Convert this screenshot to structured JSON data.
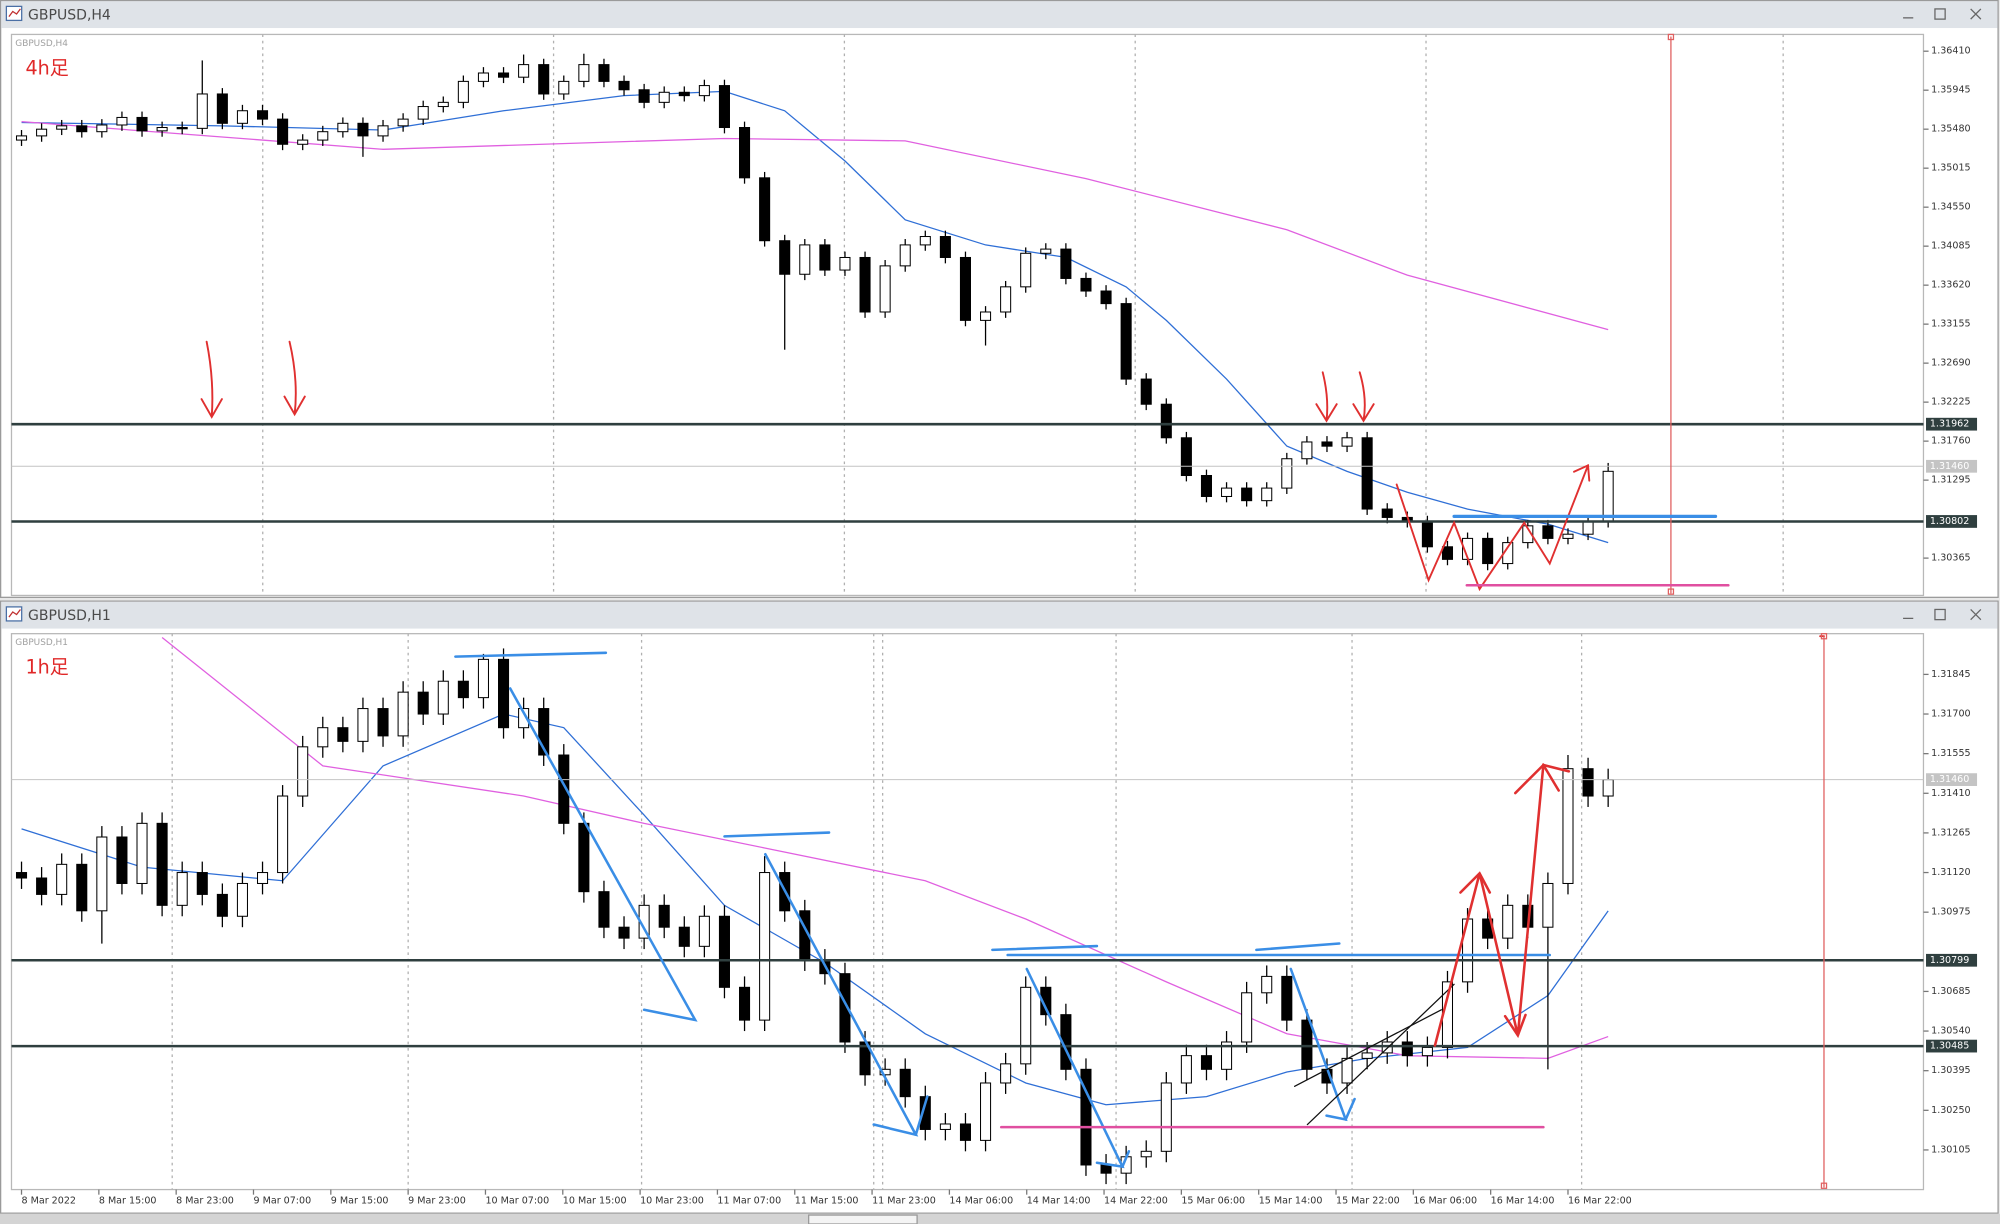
{
  "chart_data": [
    {
      "type": "candlestick",
      "window_title": "GBPUSD,H4",
      "symbol_label": "GBPUSD,H4",
      "annotation": "4h足",
      "xlim": [
        -0.5,
        94.7
      ],
      "ylim": [
        1.2992,
        1.3661
      ],
      "yticks": [
        {
          "value": 1.3641,
          "label": "1.36410"
        },
        1.35945,
        {
          "value": 1.3548,
          "label": "1.35480"
        },
        1.35015,
        {
          "value": 1.3455,
          "label": "1.34550"
        },
        1.34085,
        {
          "value": 1.3362,
          "label": "1.33620"
        },
        1.33155,
        {
          "value": 1.3269,
          "label": "1.32690"
        },
        1.32225,
        {
          "value": 1.3176,
          "label": "1.31760"
        },
        1.31295,
        1.30365
      ],
      "colors": {
        "up": "#ffffff",
        "down": "#000000",
        "wick": "#000000"
      },
      "open": [
        1.3535,
        1.354,
        1.3548,
        1.3552,
        1.3545,
        1.3553,
        1.3562,
        1.3546,
        1.355,
        1.3549,
        1.359,
        1.3555,
        1.357,
        1.356,
        1.353,
        1.3535,
        1.3545,
        1.3555,
        1.354,
        1.3552,
        1.356,
        1.3575,
        1.358,
        1.3605,
        1.3615,
        1.361,
        1.3625,
        1.359,
        1.3605,
        1.3625,
        1.3605,
        1.3595,
        1.358,
        1.3592,
        1.3588,
        1.36,
        1.355,
        1.349,
        1.3415,
        1.3375,
        1.341,
        1.338,
        1.3395,
        1.333,
        1.3385,
        1.341,
        1.342,
        1.3395,
        1.332,
        1.333,
        1.336,
        1.34,
        1.3405,
        1.337,
        1.3355,
        1.334,
        1.325,
        1.322,
        1.318,
        1.3135,
        1.311,
        1.312,
        1.3105,
        1.312,
        1.3155,
        1.3175,
        1.317,
        1.318,
        1.3095,
        1.3085,
        1.308,
        1.305,
        1.3035,
        1.306,
        1.303,
        1.3055,
        1.3075,
        1.306,
        1.3065,
        1.308
      ],
      "high": [
        1.3547,
        1.3555,
        1.3559,
        1.3559,
        1.356,
        1.3569,
        1.3569,
        1.3557,
        1.3557,
        1.363,
        1.3597,
        1.3577,
        1.3577,
        1.3567,
        1.3542,
        1.3552,
        1.3562,
        1.3562,
        1.3559,
        1.3567,
        1.3582,
        1.3587,
        1.3612,
        1.3622,
        1.3622,
        1.3637,
        1.3632,
        1.3612,
        1.3638,
        1.3632,
        1.3612,
        1.3602,
        1.3599,
        1.3599,
        1.3607,
        1.3607,
        1.3557,
        1.3497,
        1.3422,
        1.3417,
        1.3417,
        1.3402,
        1.3402,
        1.3392,
        1.3417,
        1.3427,
        1.3427,
        1.3402,
        1.3337,
        1.3367,
        1.3407,
        1.3412,
        1.3412,
        1.3377,
        1.3362,
        1.3347,
        1.3257,
        1.3227,
        1.3187,
        1.3142,
        1.3127,
        1.3127,
        1.3127,
        1.3162,
        1.3182,
        1.3182,
        1.3187,
        1.3187,
        1.3102,
        1.3092,
        1.3087,
        1.3057,
        1.3067,
        1.3067,
        1.3062,
        1.3082,
        1.3082,
        1.3072,
        1.3087,
        1.315
      ],
      "low": [
        1.3528,
        1.3533,
        1.3541,
        1.3538,
        1.3538,
        1.3546,
        1.3539,
        1.3539,
        1.3542,
        1.3542,
        1.3548,
        1.3548,
        1.3553,
        1.3523,
        1.3523,
        1.3528,
        1.3538,
        1.3515,
        1.3533,
        1.3545,
        1.3553,
        1.3568,
        1.3573,
        1.3598,
        1.3603,
        1.3603,
        1.3583,
        1.3583,
        1.3598,
        1.3598,
        1.3588,
        1.3573,
        1.3573,
        1.3581,
        1.3581,
        1.3543,
        1.3483,
        1.3408,
        1.3285,
        1.3368,
        1.3373,
        1.3373,
        1.3323,
        1.3323,
        1.3378,
        1.3403,
        1.3388,
        1.3313,
        1.329,
        1.3323,
        1.3353,
        1.3393,
        1.3363,
        1.3348,
        1.3333,
        1.3243,
        1.3213,
        1.3173,
        1.3128,
        1.3103,
        1.3103,
        1.3098,
        1.3098,
        1.3113,
        1.3148,
        1.3163,
        1.3163,
        1.3088,
        1.3078,
        1.3073,
        1.3043,
        1.3028,
        1.3028,
        1.3022,
        1.3023,
        1.3048,
        1.3053,
        1.3053,
        1.3058,
        1.3073
      ],
      "close": [
        1.354,
        1.3548,
        1.3552,
        1.3545,
        1.3553,
        1.3562,
        1.3546,
        1.355,
        1.3549,
        1.359,
        1.3555,
        1.357,
        1.356,
        1.353,
        1.3535,
        1.3545,
        1.3555,
        1.354,
        1.3552,
        1.356,
        1.3575,
        1.358,
        1.3605,
        1.3615,
        1.361,
        1.3625,
        1.359,
        1.3605,
        1.3625,
        1.3605,
        1.3595,
        1.358,
        1.3592,
        1.3588,
        1.36,
        1.355,
        1.349,
        1.3415,
        1.3375,
        1.341,
        1.338,
        1.3395,
        1.333,
        1.3385,
        1.341,
        1.342,
        1.3395,
        1.332,
        1.333,
        1.336,
        1.34,
        1.3405,
        1.337,
        1.3355,
        1.334,
        1.325,
        1.322,
        1.318,
        1.3135,
        1.311,
        1.312,
        1.3105,
        1.312,
        1.3155,
        1.3175,
        1.317,
        1.318,
        1.3095,
        1.3085,
        1.308,
        1.305,
        1.3035,
        1.306,
        1.303,
        1.3055,
        1.3075,
        1.306,
        1.3065,
        1.308,
        1.314
      ],
      "lines": [
        {
          "color": "#2f6fd6",
          "x": [
            0,
            10,
            18,
            24,
            30,
            35,
            38,
            41,
            44,
            48,
            52,
            55,
            57,
            60,
            63,
            66,
            69,
            72,
            76,
            79
          ],
          "values": [
            1.3556,
            1.3552,
            1.3547,
            1.357,
            1.3588,
            1.3593,
            1.357,
            1.351,
            1.344,
            1.341,
            1.3395,
            1.336,
            1.332,
            1.325,
            1.317,
            1.314,
            1.3115,
            1.3095,
            1.3077,
            1.3055
          ]
        },
        {
          "color": "#e060e0",
          "x": [
            0,
            18,
            35,
            44,
            53,
            63,
            69,
            79
          ],
          "values": [
            1.3557,
            1.3524,
            1.3537,
            1.3534,
            1.3489,
            1.3428,
            1.3374,
            1.3309
          ]
        }
      ],
      "levels": [
        {
          "value": 1.31962,
          "color": "#2f3f3f",
          "style": "bold"
        },
        {
          "value": 1.3146,
          "label": "1.31460",
          "color": "#c4c4c4",
          "style": "thin"
        },
        {
          "value": 1.30802,
          "color": "#2f3f3f",
          "style": "bold"
        }
      ]
    },
    {
      "type": "candlestick",
      "window_title": "GBPUSD,H1",
      "symbol_label": "GBPUSD,H1",
      "annotation": "1h足",
      "xlim": [
        -0.5,
        94.7
      ],
      "ylim": [
        1.2996,
        1.31994
      ],
      "xticks": [
        {
          "value": 0,
          "label": "8 Mar 2022"
        },
        {
          "value": 3.85,
          "label": "8 Mar 15:00"
        },
        {
          "value": 7.7,
          "label": "8 Mar 23:00"
        },
        {
          "value": 11.55,
          "label": "9 Mar 07:00"
        },
        {
          "value": 15.4,
          "label": "9 Mar 15:00"
        },
        {
          "value": 19.25,
          "label": "9 Mar 23:00"
        },
        {
          "value": 23.1,
          "label": "10 Mar 07:00"
        },
        {
          "value": 26.95,
          "label": "10 Mar 15:00"
        },
        {
          "value": 30.8,
          "label": "10 Mar 23:00"
        },
        {
          "value": 34.65,
          "label": "11 Mar 07:00"
        },
        {
          "value": 38.5,
          "label": "11 Mar 15:00"
        },
        {
          "value": 42.35,
          "label": "11 Mar 23:00"
        },
        {
          "value": 46.2,
          "label": "14 Mar 06:00"
        },
        {
          "value": 50.05,
          "label": "14 Mar 14:00"
        },
        {
          "value": 53.9,
          "label": "14 Mar 22:00"
        },
        {
          "value": 57.75,
          "label": "15 Mar 06:00"
        },
        {
          "value": 61.6,
          "label": "15 Mar 14:00"
        },
        {
          "value": 65.45,
          "label": "15 Mar 22:00"
        },
        {
          "value": 69.3,
          "label": "16 Mar 06:00"
        },
        {
          "value": 73.15,
          "label": "16 Mar 14:00"
        },
        {
          "value": 77.0,
          "label": "16 Mar 22:00"
        }
      ],
      "yticks": [
        1.31845,
        {
          "value": 1.317,
          "label": "1.31700"
        },
        1.31555,
        {
          "value": 1.3141,
          "label": "1.31410"
        },
        1.31265,
        {
          "value": 1.3112,
          "label": "1.31120"
        },
        1.30975,
        1.30685,
        {
          "value": 1.3054,
          "label": "1.30540"
        },
        1.30395,
        {
          "value": 1.3025,
          "label": "1.30250"
        },
        1.30105
      ],
      "colors": {
        "up": "#ffffff",
        "down": "#000000",
        "wick": "#000000"
      },
      "open": [
        1.3112,
        1.311,
        1.3104,
        1.3115,
        1.3098,
        1.3125,
        1.3108,
        1.313,
        1.31,
        1.3112,
        1.3104,
        1.3096,
        1.3108,
        1.3112,
        1.314,
        1.3158,
        1.3165,
        1.316,
        1.3172,
        1.3162,
        1.3178,
        1.317,
        1.3182,
        1.3176,
        1.319,
        1.3165,
        1.3172,
        1.3155,
        1.313,
        1.3105,
        1.3092,
        1.3088,
        1.31,
        1.3092,
        1.3085,
        1.3096,
        1.307,
        1.3058,
        1.3112,
        1.3098,
        1.308,
        1.3075,
        1.305,
        1.3038,
        1.304,
        1.303,
        1.3018,
        1.302,
        1.3014,
        1.3035,
        1.3042,
        1.307,
        1.306,
        1.304,
        1.3005,
        1.3002,
        1.3008,
        1.301,
        1.3035,
        1.3045,
        1.304,
        1.305,
        1.3068,
        1.3074,
        1.3058,
        1.304,
        1.3035,
        1.3044,
        1.3046,
        1.305,
        1.3045,
        1.3048,
        1.3072,
        1.3095,
        1.3088,
        1.31,
        1.3092,
        1.3108,
        1.315,
        1.314
      ],
      "high": [
        1.3116,
        1.3114,
        1.3119,
        1.3119,
        1.3129,
        1.3129,
        1.3134,
        1.3134,
        1.3116,
        1.3116,
        1.3108,
        1.3112,
        1.3116,
        1.3144,
        1.3162,
        1.3169,
        1.3169,
        1.3176,
        1.3176,
        1.3182,
        1.3182,
        1.3186,
        1.3186,
        1.3192,
        1.3194,
        1.3176,
        1.3176,
        1.3159,
        1.3134,
        1.3109,
        1.3096,
        1.3104,
        1.3104,
        1.3096,
        1.31,
        1.31,
        1.3074,
        1.3118,
        1.3116,
        1.3102,
        1.3084,
        1.3079,
        1.3054,
        1.3044,
        1.3044,
        1.3034,
        1.3024,
        1.3024,
        1.3039,
        1.3046,
        1.3074,
        1.3074,
        1.3064,
        1.3044,
        1.3009,
        1.3012,
        1.3014,
        1.3039,
        1.3049,
        1.3049,
        1.3054,
        1.3072,
        1.3078,
        1.3078,
        1.3062,
        1.3044,
        1.3048,
        1.305,
        1.3054,
        1.3054,
        1.3052,
        1.3076,
        1.3099,
        1.3099,
        1.3104,
        1.3104,
        1.3112,
        1.3155,
        1.3154,
        1.315
      ],
      "low": [
        1.3106,
        1.31,
        1.31,
        1.3094,
        1.3086,
        1.3104,
        1.3104,
        1.3096,
        1.3096,
        1.31,
        1.3092,
        1.3092,
        1.3104,
        1.3108,
        1.3136,
        1.3154,
        1.3156,
        1.3156,
        1.3158,
        1.3158,
        1.3166,
        1.3166,
        1.3172,
        1.3172,
        1.3161,
        1.3161,
        1.3151,
        1.3126,
        1.3101,
        1.3088,
        1.3084,
        1.3084,
        1.3088,
        1.3081,
        1.3081,
        1.3066,
        1.3054,
        1.3054,
        1.3094,
        1.3076,
        1.3071,
        1.3046,
        1.3034,
        1.3034,
        1.3026,
        1.3014,
        1.3014,
        1.301,
        1.301,
        1.3031,
        1.3038,
        1.3056,
        1.3036,
        1.3001,
        1.2998,
        1.2998,
        1.3004,
        1.3006,
        1.3031,
        1.3036,
        1.3036,
        1.3046,
        1.3064,
        1.3054,
        1.3036,
        1.3031,
        1.3031,
        1.304,
        1.3042,
        1.3041,
        1.3041,
        1.3044,
        1.3068,
        1.3084,
        1.3084,
        1.3088,
        1.304,
        1.3104,
        1.3136,
        1.3136
      ],
      "close": [
        1.311,
        1.3104,
        1.3115,
        1.3098,
        1.3125,
        1.3108,
        1.313,
        1.31,
        1.3112,
        1.3104,
        1.3096,
        1.3108,
        1.3112,
        1.314,
        1.3158,
        1.3165,
        1.316,
        1.3172,
        1.3162,
        1.3178,
        1.317,
        1.3182,
        1.3176,
        1.319,
        1.3165,
        1.3172,
        1.3155,
        1.313,
        1.3105,
        1.3092,
        1.3088,
        1.31,
        1.3092,
        1.3085,
        1.3096,
        1.307,
        1.3058,
        1.3112,
        1.3098,
        1.308,
        1.3075,
        1.305,
        1.3038,
        1.304,
        1.303,
        1.3018,
        1.302,
        1.3014,
        1.3035,
        1.3042,
        1.307,
        1.306,
        1.304,
        1.3005,
        1.3002,
        1.3008,
        1.301,
        1.3035,
        1.3045,
        1.304,
        1.305,
        1.3068,
        1.3074,
        1.3058,
        1.304,
        1.3035,
        1.3044,
        1.3046,
        1.305,
        1.3045,
        1.3048,
        1.3072,
        1.3095,
        1.3088,
        1.31,
        1.3092,
        1.3108,
        1.315,
        1.314,
        1.3146
      ],
      "lines": [
        {
          "color": "#2f6fd6",
          "x": [
            0,
            6,
            13,
            18,
            24,
            27,
            31,
            35,
            40,
            45,
            50,
            54,
            59,
            63,
            67,
            72,
            76,
            79
          ],
          "values": [
            1.3128,
            1.3114,
            1.3109,
            1.3151,
            1.317,
            1.3165,
            1.3133,
            1.31,
            1.3079,
            1.3053,
            1.3035,
            1.3027,
            1.303,
            1.3039,
            1.3044,
            1.3048,
            1.3067,
            1.3098
          ]
        },
        {
          "color": "#e060e0",
          "x": [
            7,
            15,
            25,
            31,
            37,
            45,
            50,
            57,
            63,
            69,
            76,
            79
          ],
          "values": [
            1.3198,
            1.3151,
            1.314,
            1.313,
            1.3121,
            1.3109,
            1.3095,
            1.3072,
            1.3053,
            1.3045,
            1.3044,
            1.3052
          ]
        }
      ],
      "levels": [
        {
          "value": 1.3146,
          "label": "1.31460",
          "color": "#c4c4c4",
          "style": "thin"
        },
        {
          "value": 1.30799,
          "color": "#2f3f3f",
          "style": "bold"
        },
        {
          "value": 1.30485,
          "color": "#2f3f3f",
          "style": "bold"
        }
      ]
    }
  ]
}
